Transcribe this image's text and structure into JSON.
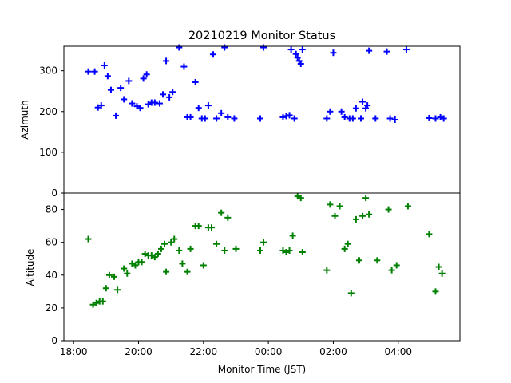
{
  "chart_data": [
    {
      "type": "scatter",
      "title": "20210219 Monitor Status",
      "ylabel": "Azimuth",
      "xlabel": "",
      "marker": "plus",
      "color": "#0000ff",
      "x_unit": "hours_since_midnight_JST",
      "xlim": [
        17.7,
        5.9
      ],
      "ylim": [
        0,
        360
      ],
      "yticks": [
        0,
        100,
        200,
        300
      ],
      "points": [
        [
          18.45,
          298
        ],
        [
          18.65,
          298
        ],
        [
          18.75,
          210
        ],
        [
          18.85,
          215
        ],
        [
          18.95,
          313
        ],
        [
          19.05,
          287
        ],
        [
          19.15,
          253
        ],
        [
          19.3,
          190
        ],
        [
          19.45,
          258
        ],
        [
          19.55,
          230
        ],
        [
          19.7,
          275
        ],
        [
          19.8,
          220
        ],
        [
          19.95,
          213
        ],
        [
          20.05,
          209
        ],
        [
          20.15,
          281
        ],
        [
          20.25,
          291
        ],
        [
          20.3,
          218
        ],
        [
          20.4,
          222
        ],
        [
          20.5,
          222
        ],
        [
          20.65,
          220
        ],
        [
          20.75,
          242
        ],
        [
          20.85,
          324
        ],
        [
          20.95,
          235
        ],
        [
          21.05,
          248
        ],
        [
          21.25,
          357
        ],
        [
          21.4,
          310
        ],
        [
          21.5,
          186
        ],
        [
          21.6,
          186
        ],
        [
          21.75,
          272
        ],
        [
          21.85,
          209
        ],
        [
          21.95,
          183
        ],
        [
          22.05,
          183
        ],
        [
          22.15,
          215
        ],
        [
          22.3,
          340
        ],
        [
          22.4,
          183
        ],
        [
          22.55,
          196
        ],
        [
          22.65,
          357
        ],
        [
          22.75,
          186
        ],
        [
          22.95,
          183
        ],
        [
          23.75,
          183
        ],
        [
          23.85,
          357
        ],
        [
          24.45,
          186
        ],
        [
          24.55,
          189
        ],
        [
          24.65,
          191
        ],
        [
          24.7,
          352
        ],
        [
          24.8,
          183
        ],
        [
          24.85,
          341
        ],
        [
          24.9,
          332
        ],
        [
          24.95,
          324
        ],
        [
          25.0,
          317
        ],
        [
          25.05,
          352
        ],
        [
          25.8,
          183
        ],
        [
          25.9,
          200
        ],
        [
          26.0,
          344
        ],
        [
          26.25,
          200
        ],
        [
          26.35,
          186
        ],
        [
          26.5,
          183
        ],
        [
          26.6,
          183
        ],
        [
          26.7,
          208
        ],
        [
          26.85,
          183
        ],
        [
          26.9,
          224
        ],
        [
          27.0,
          208
        ],
        [
          27.05,
          215
        ],
        [
          27.1,
          349
        ],
        [
          27.3,
          183
        ],
        [
          27.65,
          347
        ],
        [
          27.75,
          183
        ],
        [
          27.9,
          180
        ],
        [
          28.25,
          352
        ],
        [
          28.95,
          184
        ],
        [
          29.15,
          183
        ],
        [
          29.3,
          186
        ],
        [
          29.4,
          183
        ]
      ]
    },
    {
      "type": "scatter",
      "title": "",
      "ylabel": "Altitude",
      "xlabel": "Monitor Time (JST)",
      "marker": "plus",
      "color": "#008000",
      "x_unit": "hours_since_midnight_JST",
      "xlim": [
        17.7,
        5.9
      ],
      "ylim": [
        0,
        90
      ],
      "yticks": [
        0,
        20,
        40,
        60,
        80
      ],
      "xticks": [
        {
          "value": 18,
          "label": "18:00"
        },
        {
          "value": 20,
          "label": "20:00"
        },
        {
          "value": 22,
          "label": "22:00"
        },
        {
          "value": 24,
          "label": "00:00"
        },
        {
          "value": 26,
          "label": "02:00"
        },
        {
          "value": 28,
          "label": "04:00"
        }
      ],
      "points": [
        [
          18.45,
          62
        ],
        [
          18.6,
          22
        ],
        [
          18.7,
          23
        ],
        [
          18.8,
          24
        ],
        [
          18.9,
          24
        ],
        [
          19.0,
          32
        ],
        [
          19.1,
          40
        ],
        [
          19.25,
          39
        ],
        [
          19.35,
          31
        ],
        [
          19.55,
          44
        ],
        [
          19.65,
          41
        ],
        [
          19.8,
          47
        ],
        [
          19.9,
          46
        ],
        [
          20.0,
          48
        ],
        [
          20.1,
          48
        ],
        [
          20.2,
          53
        ],
        [
          20.3,
          52
        ],
        [
          20.4,
          52
        ],
        [
          20.5,
          51
        ],
        [
          20.6,
          53
        ],
        [
          20.7,
          56
        ],
        [
          20.8,
          59
        ],
        [
          20.85,
          42
        ],
        [
          21.0,
          60
        ],
        [
          21.1,
          62
        ],
        [
          21.25,
          55
        ],
        [
          21.35,
          47
        ],
        [
          21.5,
          42
        ],
        [
          21.6,
          56
        ],
        [
          21.75,
          70
        ],
        [
          21.85,
          70
        ],
        [
          22.0,
          46
        ],
        [
          22.15,
          69
        ],
        [
          22.25,
          69
        ],
        [
          22.4,
          59
        ],
        [
          22.55,
          78
        ],
        [
          22.65,
          55
        ],
        [
          22.75,
          75
        ],
        [
          23.0,
          56
        ],
        [
          23.75,
          55
        ],
        [
          23.85,
          60
        ],
        [
          24.45,
          55
        ],
        [
          24.55,
          54
        ],
        [
          24.65,
          55
        ],
        [
          24.75,
          64
        ],
        [
          24.9,
          88
        ],
        [
          25.0,
          87
        ],
        [
          25.05,
          54
        ],
        [
          25.8,
          43
        ],
        [
          25.9,
          83
        ],
        [
          26.05,
          76
        ],
        [
          26.2,
          82
        ],
        [
          26.35,
          56
        ],
        [
          26.45,
          59
        ],
        [
          26.55,
          29
        ],
        [
          26.7,
          74
        ],
        [
          26.8,
          49
        ],
        [
          26.9,
          76
        ],
        [
          27.0,
          87
        ],
        [
          27.1,
          77
        ],
        [
          27.35,
          49
        ],
        [
          27.7,
          80
        ],
        [
          27.8,
          43
        ],
        [
          27.95,
          46
        ],
        [
          28.3,
          82
        ],
        [
          28.95,
          65
        ],
        [
          29.15,
          30
        ],
        [
          29.25,
          45
        ],
        [
          29.35,
          41
        ]
      ]
    }
  ]
}
